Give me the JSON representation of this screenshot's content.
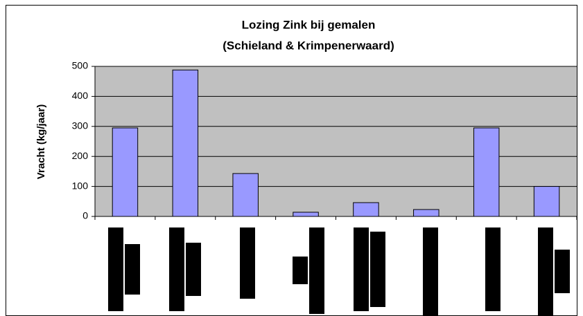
{
  "chart_data": {
    "type": "bar",
    "title": [
      "Lozing Zink bij gemalen",
      "(Schieland & Krimpenerwaard)"
    ],
    "y_label": "Vracht (kg/jaar)",
    "categories": [
      null,
      null,
      null,
      null,
      null,
      null,
      null,
      null
    ],
    "values": [
      295,
      488,
      143,
      14,
      46,
      23,
      295,
      100
    ],
    "color": "#9999ff",
    "ylim": [
      0,
      500
    ],
    "yticks": [
      0,
      100,
      200,
      300,
      400,
      500
    ],
    "grid": true
  }
}
